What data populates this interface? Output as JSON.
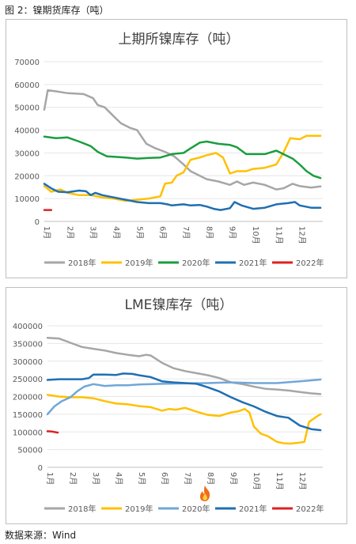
{
  "figure_title": "图 2：镍期货库存（吨）",
  "source": "数据来源：Wind",
  "colors": {
    "2018": "#a6a6a6",
    "2019": "#ffc000",
    "2020": "#1a9e3e",
    "2021": "#1f6fb2",
    "2022": "#e02020",
    "2020_lme": "#70a7d8"
  },
  "icons": [
    "flame-icon"
  ],
  "chart_data": [
    {
      "type": "line",
      "title": "上期所镍库存（吨）",
      "x_ticks": [
        "1月",
        "2月",
        "3月",
        "4月",
        "5月",
        "6月",
        "7月",
        "8月",
        "9月",
        "10月",
        "11月",
        "12月"
      ],
      "x_range": [
        1,
        13
      ],
      "ylim": [
        0,
        70000
      ],
      "y_ticks": [
        "0",
        "10000",
        "20000",
        "30000",
        "40000",
        "50000",
        "60000",
        "70000"
      ],
      "grid": true,
      "legend_position": "bottom",
      "series": [
        {
          "name": "2018年",
          "color": "#a6a6a6",
          "points": [
            [
              1,
              49000
            ],
            [
              1.15,
              57500
            ],
            [
              1.5,
              57000
            ],
            [
              2,
              56200
            ],
            [
              2.7,
              55800
            ],
            [
              3.1,
              54000
            ],
            [
              3.3,
              51000
            ],
            [
              3.6,
              50000
            ],
            [
              4,
              46000
            ],
            [
              4.3,
              43000
            ],
            [
              4.7,
              41000
            ],
            [
              5,
              40000
            ],
            [
              5.4,
              34000
            ],
            [
              5.8,
              32000
            ],
            [
              6.2,
              30500
            ],
            [
              6.6,
              28500
            ],
            [
              7,
              25000
            ],
            [
              7.3,
              22000
            ],
            [
              7.7,
              20000
            ],
            [
              8,
              18500
            ],
            [
              8.5,
              17500
            ],
            [
              9,
              16000
            ],
            [
              9.3,
              17500
            ],
            [
              9.6,
              16000
            ],
            [
              10,
              17000
            ],
            [
              10.5,
              16000
            ],
            [
              11,
              14000
            ],
            [
              11.3,
              14500
            ],
            [
              11.7,
              16500
            ],
            [
              12,
              15500
            ],
            [
              12.5,
              14800
            ],
            [
              12.9,
              15300
            ]
          ]
        },
        {
          "name": "2019年",
          "color": "#ffc000",
          "points": [
            [
              1,
              15500
            ],
            [
              1.3,
              13000
            ],
            [
              1.7,
              14000
            ],
            [
              2,
              12500
            ],
            [
              2.5,
              11500
            ],
            [
              3,
              11500
            ],
            [
              3.5,
              10500
            ],
            [
              4,
              10000
            ],
            [
              4.5,
              9000
            ],
            [
              5,
              9500
            ],
            [
              5.5,
              10000
            ],
            [
              6,
              11000
            ],
            [
              6.2,
              16500
            ],
            [
              6.5,
              17000
            ],
            [
              6.7,
              20000
            ],
            [
              7,
              21500
            ],
            [
              7.3,
              27000
            ],
            [
              7.7,
              28000
            ],
            [
              8,
              29000
            ],
            [
              8.4,
              30000
            ],
            [
              8.7,
              28000
            ],
            [
              9,
              21000
            ],
            [
              9.3,
              22000
            ],
            [
              9.7,
              22000
            ],
            [
              10,
              23000
            ],
            [
              10.5,
              23500
            ],
            [
              11,
              25000
            ],
            [
              11.3,
              30000
            ],
            [
              11.6,
              36500
            ],
            [
              12,
              36000
            ],
            [
              12.3,
              37500
            ],
            [
              12.9,
              37500
            ]
          ]
        },
        {
          "name": "2020年",
          "color": "#1a9e3e",
          "points": [
            [
              1,
              37200
            ],
            [
              1.5,
              36500
            ],
            [
              2,
              36800
            ],
            [
              2.5,
              35000
            ],
            [
              3,
              33000
            ],
            [
              3.3,
              30500
            ],
            [
              3.7,
              28500
            ],
            [
              4,
              28300
            ],
            [
              4.5,
              28000
            ],
            [
              5,
              27500
            ],
            [
              5.5,
              27800
            ],
            [
              6,
              28000
            ],
            [
              6.5,
              29500
            ],
            [
              7,
              30000
            ],
            [
              7.3,
              32000
            ],
            [
              7.7,
              34500
            ],
            [
              8,
              35000
            ],
            [
              8.5,
              34000
            ],
            [
              9,
              33500
            ],
            [
              9.3,
              32500
            ],
            [
              9.7,
              29500
            ],
            [
              10,
              29500
            ],
            [
              10.5,
              29500
            ],
            [
              11,
              31000
            ],
            [
              11.3,
              29500
            ],
            [
              11.7,
              27500
            ],
            [
              12,
              25000
            ],
            [
              12.3,
              22000
            ],
            [
              12.6,
              20000
            ],
            [
              12.9,
              19000
            ]
          ]
        },
        {
          "name": "2021年",
          "color": "#1f6fb2",
          "points": [
            [
              1,
              16500
            ],
            [
              1.3,
              14500
            ],
            [
              1.6,
              13000
            ],
            [
              2,
              12800
            ],
            [
              2.5,
              13500
            ],
            [
              2.8,
              13200
            ],
            [
              3,
              11500
            ],
            [
              3.2,
              12500
            ],
            [
              3.5,
              11500
            ],
            [
              4,
              10500
            ],
            [
              4.5,
              9500
            ],
            [
              5,
              8500
            ],
            [
              5.5,
              8000
            ],
            [
              6,
              8000
            ],
            [
              6.3,
              7500
            ],
            [
              6.5,
              7000
            ],
            [
              7,
              7500
            ],
            [
              7.3,
              7000
            ],
            [
              7.7,
              7200
            ],
            [
              8,
              6500
            ],
            [
              8.3,
              5500
            ],
            [
              8.6,
              5000
            ],
            [
              9,
              5800
            ],
            [
              9.2,
              8500
            ],
            [
              9.5,
              7000
            ],
            [
              10,
              5500
            ],
            [
              10.5,
              6000
            ],
            [
              11,
              7500
            ],
            [
              11.5,
              8000
            ],
            [
              11.8,
              8500
            ],
            [
              12,
              7000
            ],
            [
              12.5,
              6000
            ],
            [
              12.9,
              6000
            ]
          ]
        },
        {
          "name": "2022年",
          "color": "#e02020",
          "points": [
            [
              1,
              5000
            ],
            [
              1.3,
              5000
            ]
          ]
        }
      ]
    },
    {
      "type": "line",
      "title": "LME镍库存（吨）",
      "x_ticks": [
        "1月",
        "2月",
        "3月",
        "4月",
        "5月",
        "6月",
        "7月",
        "8月",
        "9月",
        "10月",
        "11月",
        "12月"
      ],
      "x_range": [
        1,
        13
      ],
      "ylim": [
        0,
        400000
      ],
      "y_ticks": [
        "0",
        "50000",
        "100000",
        "150000",
        "200000",
        "250000",
        "300000",
        "350000",
        "400000"
      ],
      "grid": true,
      "legend_position": "bottom",
      "series": [
        {
          "name": "2018年",
          "color": "#a6a6a6",
          "points": [
            [
              1,
              366000
            ],
            [
              1.5,
              364000
            ],
            [
              2,
              352000
            ],
            [
              2.5,
              340000
            ],
            [
              3,
              335000
            ],
            [
              3.5,
              330000
            ],
            [
              4,
              323000
            ],
            [
              4.5,
              318000
            ],
            [
              5,
              314000
            ],
            [
              5.3,
              318000
            ],
            [
              5.5,
              316000
            ],
            [
              6,
              295000
            ],
            [
              6.5,
              280000
            ],
            [
              7,
              272000
            ],
            [
              7.5,
              266000
            ],
            [
              8,
              260000
            ],
            [
              8.5,
              252000
            ],
            [
              9,
              240000
            ],
            [
              9.5,
              235000
            ],
            [
              10,
              228000
            ],
            [
              10.5,
              222000
            ],
            [
              11,
              220000
            ],
            [
              11.5,
              217000
            ],
            [
              12,
              213000
            ],
            [
              12.5,
              209000
            ],
            [
              12.9,
              207000
            ]
          ]
        },
        {
          "name": "2019年",
          "color": "#ffc000",
          "points": [
            [
              1,
              205000
            ],
            [
              1.5,
              200000
            ],
            [
              2,
              198000
            ],
            [
              2.5,
              198000
            ],
            [
              3,
              195000
            ],
            [
              3.5,
              187000
            ],
            [
              4,
              180000
            ],
            [
              4.5,
              178000
            ],
            [
              5,
              173000
            ],
            [
              5.5,
              170000
            ],
            [
              6,
              160000
            ],
            [
              6.3,
              165000
            ],
            [
              6.6,
              163000
            ],
            [
              7,
              168000
            ],
            [
              7.5,
              157000
            ],
            [
              8,
              148000
            ],
            [
              8.5,
              145000
            ],
            [
              9,
              155000
            ],
            [
              9.3,
              158000
            ],
            [
              9.6,
              165000
            ],
            [
              9.8,
              155000
            ],
            [
              10,
              115000
            ],
            [
              10.3,
              95000
            ],
            [
              10.6,
              88000
            ],
            [
              11,
              72000
            ],
            [
              11.3,
              68000
            ],
            [
              11.6,
              67000
            ],
            [
              12,
              70000
            ],
            [
              12.2,
              72000
            ],
            [
              12.4,
              128000
            ],
            [
              12.7,
              142000
            ],
            [
              12.9,
              150000
            ]
          ]
        },
        {
          "name": "2020年",
          "color": "#70a7d8",
          "points": [
            [
              1,
              150000
            ],
            [
              1.3,
              172000
            ],
            [
              1.6,
              186000
            ],
            [
              2,
              198000
            ],
            [
              2.3,
              215000
            ],
            [
              2.6,
              228000
            ],
            [
              3,
              235000
            ],
            [
              3.5,
              230000
            ],
            [
              4,
              232000
            ],
            [
              4.5,
              232000
            ],
            [
              5,
              234000
            ],
            [
              6,
              236000
            ],
            [
              7,
              237000
            ],
            [
              8,
              238000
            ],
            [
              8.5,
              239000
            ],
            [
              9,
              240000
            ],
            [
              10,
              238000
            ],
            [
              11,
              238000
            ],
            [
              12,
              243000
            ],
            [
              12.9,
              248000
            ]
          ]
        },
        {
          "name": "2021年",
          "color": "#1f6fb2",
          "points": [
            [
              1,
              247000
            ],
            [
              1.5,
              249000
            ],
            [
              2,
              249000
            ],
            [
              2.5,
              249000
            ],
            [
              2.8,
              252000
            ],
            [
              3,
              262000
            ],
            [
              3.5,
              262000
            ],
            [
              4,
              261000
            ],
            [
              4.3,
              265000
            ],
            [
              4.7,
              264000
            ],
            [
              5,
              260000
            ],
            [
              5.5,
              255000
            ],
            [
              6,
              243000
            ],
            [
              6.5,
              240000
            ],
            [
              7,
              238000
            ],
            [
              7.5,
              236000
            ],
            [
              8,
              226000
            ],
            [
              8.5,
              214000
            ],
            [
              9,
              198000
            ],
            [
              9.5,
              184000
            ],
            [
              10,
              172000
            ],
            [
              10.5,
              157000
            ],
            [
              11,
              145000
            ],
            [
              11.5,
              140000
            ],
            [
              12,
              118000
            ],
            [
              12.5,
              108000
            ],
            [
              12.9,
              105000
            ]
          ]
        },
        {
          "name": "2022年",
          "color": "#e02020",
          "points": [
            [
              1,
              102000
            ],
            [
              1.2,
              101000
            ],
            [
              1.45,
              98000
            ]
          ]
        }
      ]
    }
  ]
}
